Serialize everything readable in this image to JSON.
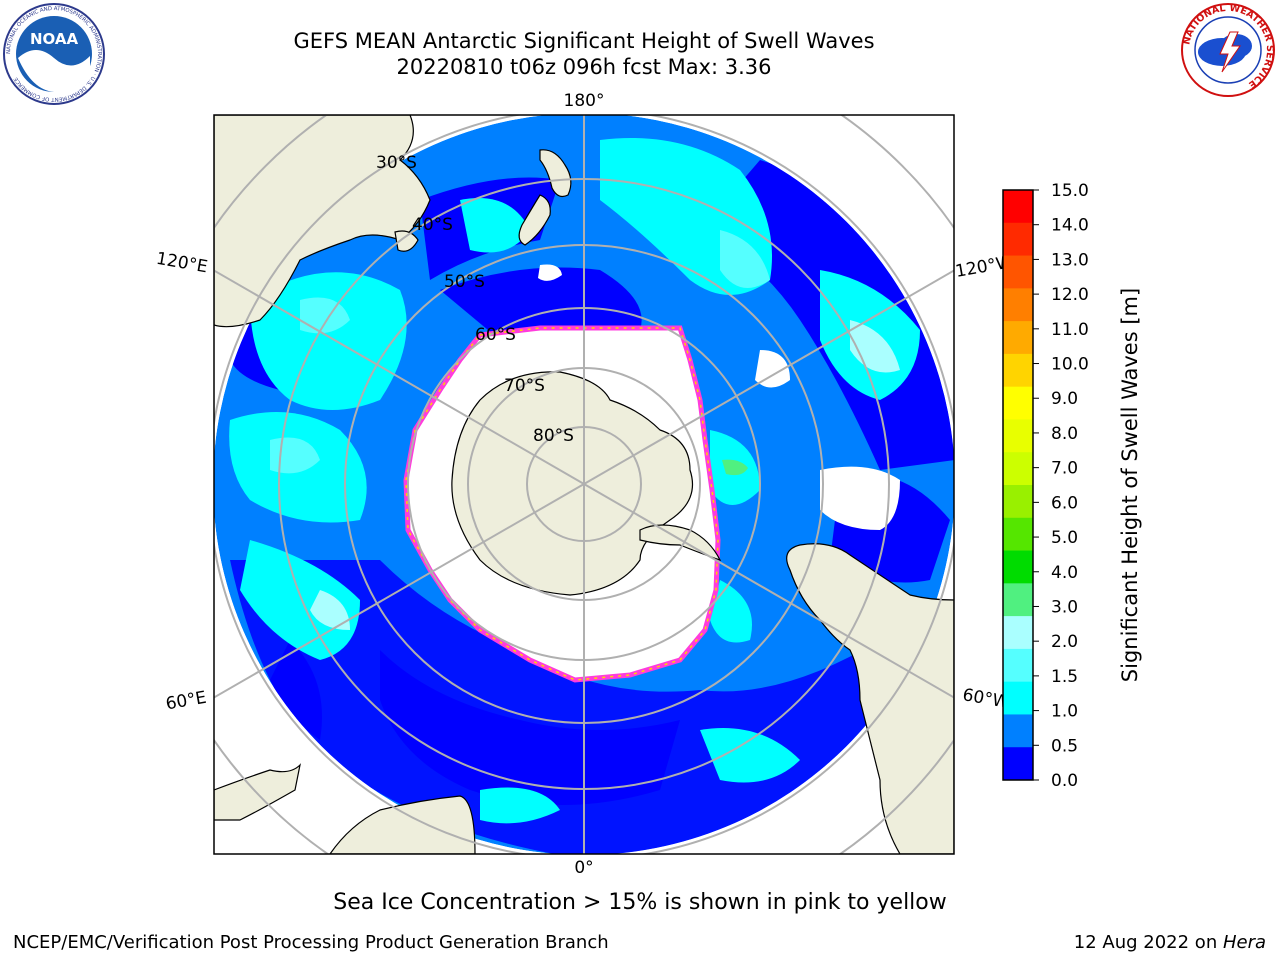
{
  "header": {
    "title_line1": "GEFS MEAN Antarctic Significant Height of Swell Waves",
    "title_line2": "20220810 t06z 096h fcst   Max: 3.36",
    "noaa_logo_text": "NOAA",
    "noaa_ring_text": "NATIONAL OCEANIC AND ATMOSPHERIC ADMINISTRATION · U.S. DEPARTMENT OF COMMERCE",
    "nws_ring_text": "NATIONAL WEATHER SERVICE"
  },
  "map": {
    "projection": "south-polar-stereographic",
    "longitude_labels": {
      "top": "180°",
      "bottom": "0°",
      "left_upper": "120°E",
      "left_lower": "60°E",
      "right_upper": "120°W",
      "right_lower": "60°W"
    },
    "latitude_labels": [
      "30°S",
      "40°S",
      "50°S",
      "60°S",
      "70°S",
      "80°S"
    ],
    "colors": {
      "land": "#eeeedc",
      "ocean_lowest": "#0000ff",
      "ice_free_interior": "#ffffff",
      "grid": "#b0b0b0",
      "ice_edge": "#ff3cdc"
    }
  },
  "colorbar": {
    "label": "Significant Height of Swell Waves [m]",
    "ticks": [
      "15.0",
      "14.0",
      "13.0",
      "12.0",
      "11.0",
      "10.0",
      "9.0",
      "8.0",
      "7.0",
      "6.0",
      "5.0",
      "4.0",
      "3.0",
      "2.0",
      "1.5",
      "1.0",
      "0.5",
      "0.0"
    ],
    "colors_top_to_bottom": [
      "#ff0000",
      "#ff2a00",
      "#ff5500",
      "#ff7f00",
      "#ffaa00",
      "#ffd400",
      "#ffff00",
      "#e8ff00",
      "#ccff00",
      "#99f000",
      "#55e600",
      "#00dc00",
      "#50f080",
      "#aaffff",
      "#55ffff",
      "#00ffff",
      "#0080ff",
      "#0000ff"
    ]
  },
  "note": "Sea Ice Concentration > 15% is shown in pink to yellow",
  "footer": {
    "left": "NCEP/EMC/Verification Post Processing Product Generation Branch",
    "right_prefix": "12 Aug 2022 on ",
    "right_italic": "Hera"
  }
}
